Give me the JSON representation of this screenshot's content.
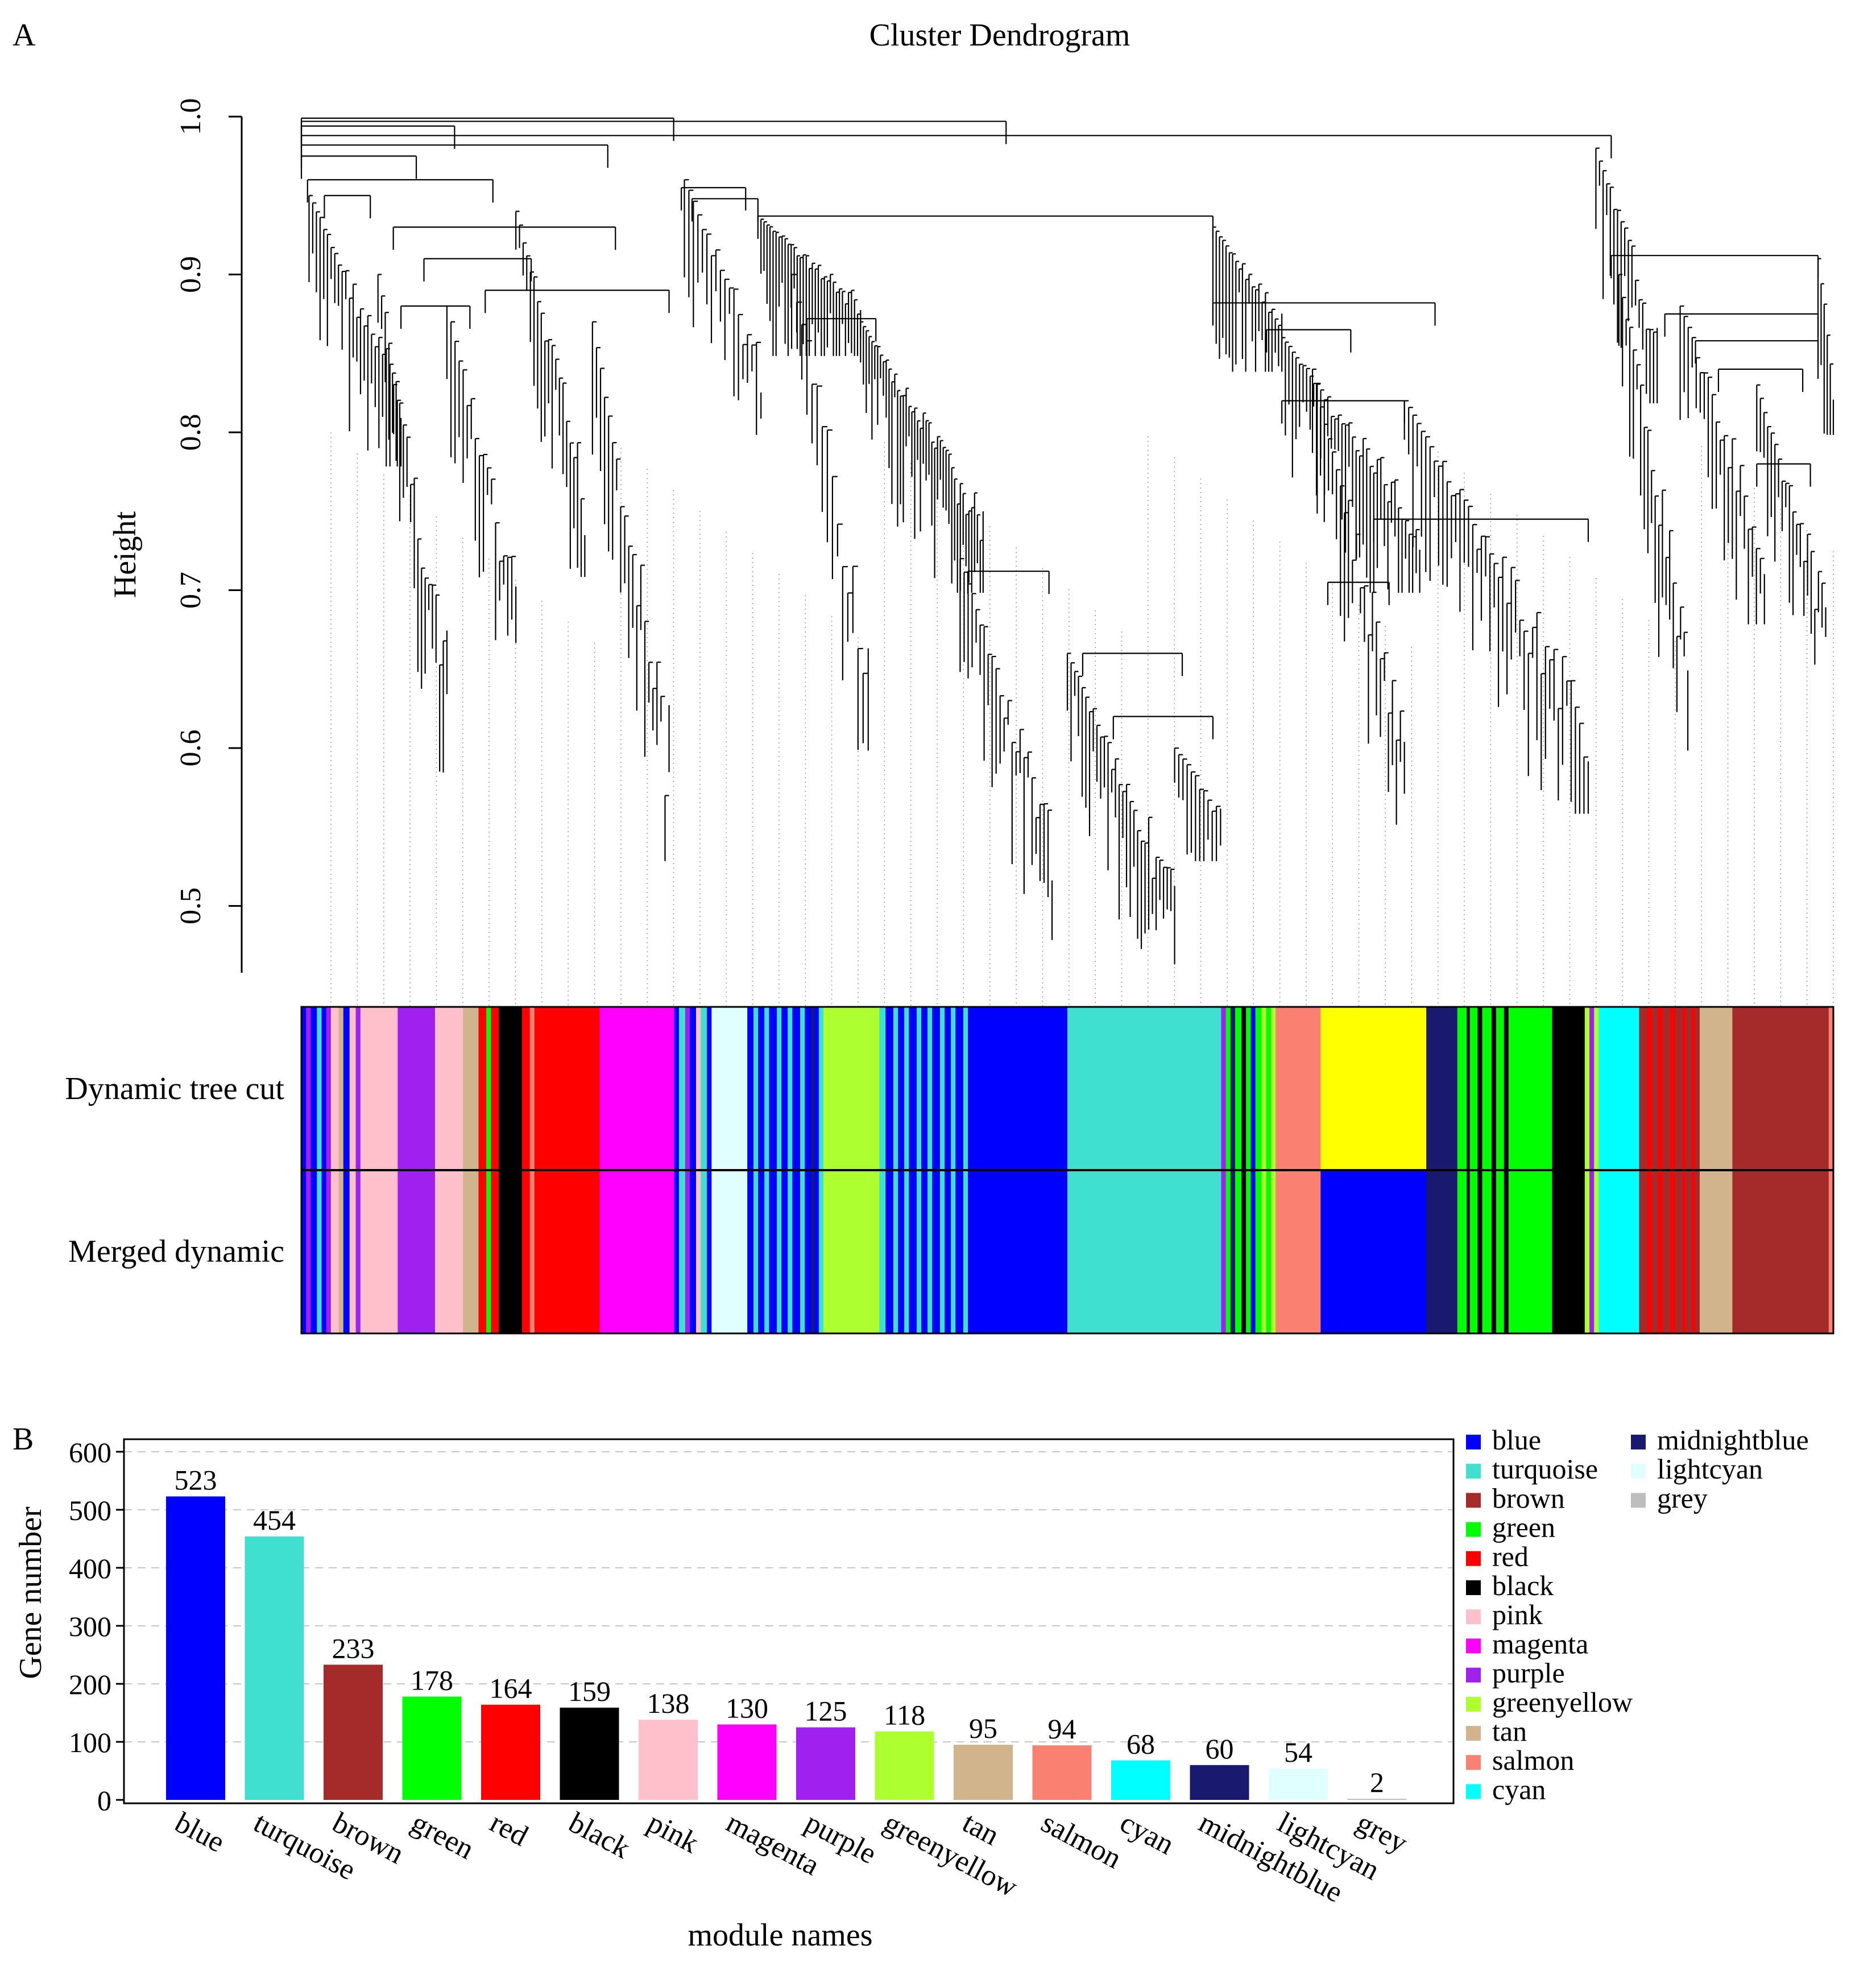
{
  "panel_a": {
    "label": "A",
    "title": "Cluster Dendrogram",
    "ylabel": "Height",
    "ylim": [
      0.44,
      1.0
    ],
    "yticks": [
      "0.5",
      "0.6",
      "0.7",
      "0.8",
      "0.9",
      "1.0"
    ],
    "ytick_values": [
      0.5,
      0.6,
      0.7,
      0.8,
      0.9,
      1.0
    ],
    "row_labels": [
      "Dynamic tree cut",
      "Merged dynamic"
    ],
    "colors": {
      "blue": "#0000ff",
      "turquoise": "#40e0d0",
      "brown": "#a52a2a",
      "green": "#00ff00",
      "red": "#ff0000",
      "black": "#000000",
      "pink": "#ffc0cb",
      "magenta": "#ff00ff",
      "purple": "#a020f0",
      "greenyellow": "#adff2f",
      "tan": "#d2b48c",
      "salmon": "#fa8072",
      "cyan": "#00ffff",
      "midnightblue": "#191970",
      "lightcyan": "#e0ffff",
      "grey": "#bebebe",
      "yellow": "#ffff00"
    },
    "dynamic_segments": [
      [
        "blue",
        0.3
      ],
      [
        "purple",
        0.3
      ],
      [
        "blue",
        0.4
      ],
      [
        "turquoise",
        0.3
      ],
      [
        "blue",
        0.3
      ],
      [
        "purple",
        0.3
      ],
      [
        "pink",
        0.5
      ],
      [
        "tan",
        0.3
      ],
      [
        "blue",
        0.4
      ],
      [
        "pink",
        0.4
      ],
      [
        "purple",
        0.3
      ],
      [
        "pink",
        0.3
      ],
      [
        "pink",
        2.1
      ],
      [
        "purple",
        2.4
      ],
      [
        "pink",
        1.8
      ],
      [
        "tan",
        1.0
      ],
      [
        "red",
        0.5
      ],
      [
        "green",
        0.3
      ],
      [
        "red",
        0.5
      ],
      [
        "black",
        1.5
      ],
      [
        "red",
        0.5
      ],
      [
        "salmon",
        0.3
      ],
      [
        "red",
        4.2
      ],
      [
        "magenta",
        4.8
      ],
      [
        "blue",
        0.3
      ],
      [
        "turquoise",
        0.4
      ],
      [
        "purple",
        0.3
      ],
      [
        "blue",
        0.4
      ],
      [
        "pink",
        0.3
      ],
      [
        "turquoise",
        0.4
      ],
      [
        "blue",
        0.3
      ],
      [
        "lightcyan",
        2.3
      ],
      [
        "blue",
        0.4
      ],
      [
        "turquoise",
        0.3
      ],
      [
        "blue",
        0.4
      ],
      [
        "turquoise",
        0.3
      ],
      [
        "blue",
        0.5
      ],
      [
        "turquoise",
        0.3
      ],
      [
        "blue",
        0.4
      ],
      [
        "turquoise",
        0.3
      ],
      [
        "blue",
        0.5
      ],
      [
        "turquoise",
        0.3
      ],
      [
        "blue",
        0.4
      ],
      [
        "midnightblue",
        0.2
      ],
      [
        "blue",
        0.3
      ],
      [
        "turquoise",
        0.3
      ],
      [
        "greenyellow",
        3.6
      ],
      [
        "turquoise",
        0.4
      ],
      [
        "blue",
        0.5
      ],
      [
        "turquoise",
        0.3
      ],
      [
        "blue",
        0.4
      ],
      [
        "turquoise",
        0.3
      ],
      [
        "blue",
        0.5
      ],
      [
        "turquoise",
        0.3
      ],
      [
        "blue",
        0.4
      ],
      [
        "turquoise",
        0.3
      ],
      [
        "blue",
        0.5
      ],
      [
        "turquoise",
        0.3
      ],
      [
        "blue",
        0.4
      ],
      [
        "turquoise",
        0.3
      ],
      [
        "blue",
        0.5
      ],
      [
        "turquoise",
        0.3
      ],
      [
        "blue",
        0.4
      ],
      [
        "blue",
        6.0
      ],
      [
        "turquoise",
        9.9
      ],
      [
        "purple",
        0.3
      ],
      [
        "green",
        0.3
      ],
      [
        "midnightblue",
        0.3
      ],
      [
        "green",
        0.4
      ],
      [
        "black",
        0.3
      ],
      [
        "green",
        0.3
      ],
      [
        "blue",
        0.3
      ],
      [
        "green",
        0.4
      ],
      [
        "greenyellow",
        0.3
      ],
      [
        "green",
        0.3
      ],
      [
        "greenyellow",
        0.3
      ],
      [
        "salmon",
        2.9
      ],
      [
        "yellow",
        6.8
      ],
      [
        "midnightblue",
        2.0
      ],
      [
        "green",
        0.6
      ],
      [
        "black",
        0.2
      ],
      [
        "green",
        0.5
      ],
      [
        "black",
        0.3
      ],
      [
        "green",
        0.6
      ],
      [
        "black",
        0.3
      ],
      [
        "green",
        0.5
      ],
      [
        "black",
        0.3
      ],
      [
        "green",
        0.6
      ],
      [
        "green",
        2.2
      ],
      [
        "black",
        2.1
      ],
      [
        "greenyellow",
        0.3
      ],
      [
        "purple",
        0.3
      ],
      [
        "greenyellow",
        0.3
      ],
      [
        "cyan",
        2.6
      ],
      [
        "brown",
        0.5
      ],
      [
        "red",
        0.3
      ],
      [
        "brown",
        0.4
      ],
      [
        "red",
        0.3
      ],
      [
        "brown",
        0.5
      ],
      [
        "red",
        0.3
      ],
      [
        "brown",
        0.5
      ],
      [
        "red",
        0.2
      ],
      [
        "brown",
        0.4
      ],
      [
        "red",
        0.2
      ],
      [
        "brown",
        0.3
      ],
      [
        "tan",
        2.1
      ],
      [
        "brown",
        6.2
      ],
      [
        "salmon",
        0.3
      ]
    ],
    "merged_segments": [
      [
        "blue",
        0.3
      ],
      [
        "purple",
        0.3
      ],
      [
        "blue",
        0.4
      ],
      [
        "turquoise",
        0.3
      ],
      [
        "blue",
        0.3
      ],
      [
        "purple",
        0.3
      ],
      [
        "pink",
        0.5
      ],
      [
        "tan",
        0.3
      ],
      [
        "blue",
        0.4
      ],
      [
        "pink",
        0.4
      ],
      [
        "purple",
        0.3
      ],
      [
        "pink",
        0.3
      ],
      [
        "pink",
        2.1
      ],
      [
        "purple",
        2.4
      ],
      [
        "pink",
        1.8
      ],
      [
        "tan",
        1.0
      ],
      [
        "red",
        0.5
      ],
      [
        "green",
        0.3
      ],
      [
        "red",
        0.5
      ],
      [
        "black",
        1.5
      ],
      [
        "red",
        0.5
      ],
      [
        "salmon",
        0.3
      ],
      [
        "red",
        4.2
      ],
      [
        "magenta",
        4.8
      ],
      [
        "blue",
        0.3
      ],
      [
        "turquoise",
        0.4
      ],
      [
        "purple",
        0.3
      ],
      [
        "blue",
        0.4
      ],
      [
        "pink",
        0.3
      ],
      [
        "turquoise",
        0.4
      ],
      [
        "blue",
        0.3
      ],
      [
        "lightcyan",
        2.3
      ],
      [
        "blue",
        0.4
      ],
      [
        "turquoise",
        0.3
      ],
      [
        "blue",
        0.4
      ],
      [
        "turquoise",
        0.3
      ],
      [
        "blue",
        0.5
      ],
      [
        "turquoise",
        0.3
      ],
      [
        "blue",
        0.4
      ],
      [
        "turquoise",
        0.3
      ],
      [
        "blue",
        0.5
      ],
      [
        "turquoise",
        0.3
      ],
      [
        "blue",
        0.4
      ],
      [
        "midnightblue",
        0.2
      ],
      [
        "blue",
        0.3
      ],
      [
        "turquoise",
        0.3
      ],
      [
        "greenyellow",
        3.6
      ],
      [
        "turquoise",
        0.4
      ],
      [
        "blue",
        0.5
      ],
      [
        "turquoise",
        0.3
      ],
      [
        "blue",
        0.4
      ],
      [
        "turquoise",
        0.3
      ],
      [
        "blue",
        0.5
      ],
      [
        "turquoise",
        0.3
      ],
      [
        "blue",
        0.4
      ],
      [
        "turquoise",
        0.3
      ],
      [
        "blue",
        0.5
      ],
      [
        "turquoise",
        0.3
      ],
      [
        "blue",
        0.4
      ],
      [
        "turquoise",
        0.3
      ],
      [
        "blue",
        0.5
      ],
      [
        "turquoise",
        0.3
      ],
      [
        "blue",
        0.4
      ],
      [
        "blue",
        6.0
      ],
      [
        "turquoise",
        9.9
      ],
      [
        "purple",
        0.3
      ],
      [
        "green",
        0.3
      ],
      [
        "midnightblue",
        0.3
      ],
      [
        "green",
        0.4
      ],
      [
        "black",
        0.3
      ],
      [
        "green",
        0.3
      ],
      [
        "blue",
        0.3
      ],
      [
        "green",
        0.4
      ],
      [
        "greenyellow",
        0.3
      ],
      [
        "green",
        0.3
      ],
      [
        "greenyellow",
        0.3
      ],
      [
        "salmon",
        2.9
      ],
      [
        "blue",
        6.8
      ],
      [
        "midnightblue",
        2.0
      ],
      [
        "green",
        0.6
      ],
      [
        "black",
        0.2
      ],
      [
        "green",
        0.5
      ],
      [
        "black",
        0.3
      ],
      [
        "green",
        0.6
      ],
      [
        "black",
        0.3
      ],
      [
        "green",
        0.5
      ],
      [
        "black",
        0.3
      ],
      [
        "green",
        0.6
      ],
      [
        "green",
        2.2
      ],
      [
        "black",
        2.1
      ],
      [
        "greenyellow",
        0.3
      ],
      [
        "purple",
        0.3
      ],
      [
        "greenyellow",
        0.3
      ],
      [
        "cyan",
        2.6
      ],
      [
        "brown",
        0.5
      ],
      [
        "red",
        0.3
      ],
      [
        "brown",
        0.4
      ],
      [
        "red",
        0.3
      ],
      [
        "brown",
        0.5
      ],
      [
        "red",
        0.3
      ],
      [
        "brown",
        0.5
      ],
      [
        "red",
        0.2
      ],
      [
        "brown",
        0.4
      ],
      [
        "red",
        0.2
      ],
      [
        "brown",
        0.3
      ],
      [
        "tan",
        2.1
      ],
      [
        "brown",
        6.2
      ],
      [
        "salmon",
        0.3
      ]
    ],
    "tree": {
      "merges": [
        {
          "x": [
            0.0,
            24.3
          ],
          "h": 0.999
        },
        {
          "x": [
            0.0,
            46.0
          ],
          "h": 0.997
        },
        {
          "x": [
            0.0,
            10.0
          ],
          "h": 0.994
        },
        {
          "x": [
            0.0,
            85.5
          ],
          "h": 0.988
        },
        {
          "x": [
            0.0,
            20.0
          ],
          "h": 0.982
        },
        {
          "x": [
            0.0,
            7.5
          ],
          "h": 0.975
        },
        {
          "x": [
            0.4,
            12.5
          ],
          "h": 0.96
        },
        {
          "x": [
            1.5,
            4.5
          ],
          "h": 0.95
        },
        {
          "x": [
            6.0,
            20.5
          ],
          "h": 0.93
        },
        {
          "x": [
            8.0,
            15.0
          ],
          "h": 0.91
        },
        {
          "x": [
            12.0,
            24.0
          ],
          "h": 0.89
        },
        {
          "x": [
            6.5,
            11.0
          ],
          "h": 0.88
        },
        {
          "x": [
            24.8,
            29.0
          ],
          "h": 0.955
        },
        {
          "x": [
            25.5,
            29.8
          ],
          "h": 0.948
        },
        {
          "x": [
            29.8,
            59.5
          ],
          "h": 0.937
        },
        {
          "x": [
            33.0,
            37.5
          ],
          "h": 0.872
        },
        {
          "x": [
            43.5,
            48.8
          ],
          "h": 0.712
        },
        {
          "x": [
            51.0,
            57.5
          ],
          "h": 0.66
        },
        {
          "x": [
            53.0,
            59.5
          ],
          "h": 0.62
        },
        {
          "x": [
            59.5,
            74.0
          ],
          "h": 0.882
        },
        {
          "x": [
            63.0,
            68.5
          ],
          "h": 0.865
        },
        {
          "x": [
            64.0,
            72.0
          ],
          "h": 0.82
        },
        {
          "x": [
            70.0,
            84.0
          ],
          "h": 0.745
        },
        {
          "x": [
            67.0,
            71.0
          ],
          "h": 0.705
        },
        {
          "x": [
            85.5,
            99.0
          ],
          "h": 0.912
        },
        {
          "x": [
            89.0,
            99.0
          ],
          "h": 0.875
        },
        {
          "x": [
            91.0,
            99.0
          ],
          "h": 0.858
        },
        {
          "x": [
            92.5,
            98.0
          ],
          "h": 0.84
        },
        {
          "x": [
            95.0,
            98.5
          ],
          "h": 0.78
        }
      ],
      "leaves": [
        {
          "x": [
            0.5,
            6.5
          ],
          "base": 0.95,
          "tip": 0.8,
          "k": 26
        },
        {
          "x": [
            5.0,
            9.5
          ],
          "base": 0.9,
          "tip": 0.6,
          "k": 20
        },
        {
          "x": [
            9.5,
            14.0
          ],
          "base": 0.88,
          "tip": 0.66,
          "k": 18
        },
        {
          "x": [
            14.0,
            18.5
          ],
          "base": 0.94,
          "tip": 0.73,
          "k": 20
        },
        {
          "x": [
            19.0,
            24.0
          ],
          "base": 0.87,
          "tip": 0.55,
          "k": 20
        },
        {
          "x": [
            25.0,
            30.0
          ],
          "base": 0.96,
          "tip": 0.82,
          "k": 18
        },
        {
          "x": [
            30.0,
            36.5
          ],
          "base": 0.935,
          "tip": 0.87,
          "k": 34
        },
        {
          "x": [
            36.5,
            44.5
          ],
          "base": 0.87,
          "tip": 0.72,
          "k": 44
        },
        {
          "x": [
            32.0,
            37.0
          ],
          "base": 0.9,
          "tip": 0.62,
          "k": 16
        },
        {
          "x": [
            43.0,
            49.0
          ],
          "base": 0.72,
          "tip": 0.5,
          "k": 24
        },
        {
          "x": [
            50.0,
            57.0
          ],
          "base": 0.66,
          "tip": 0.48,
          "k": 30
        },
        {
          "x": [
            57.0,
            60.0
          ],
          "base": 0.6,
          "tip": 0.55,
          "k": 12
        },
        {
          "x": [
            59.5,
            64.0
          ],
          "base": 0.93,
          "tip": 0.86,
          "k": 22
        },
        {
          "x": [
            64.0,
            73.0
          ],
          "base": 0.86,
          "tip": 0.72,
          "k": 40
        },
        {
          "x": [
            66.0,
            72.0
          ],
          "base": 0.84,
          "tip": 0.56,
          "k": 24
        },
        {
          "x": [
            72.0,
            84.0
          ],
          "base": 0.82,
          "tip": 0.58,
          "k": 44
        },
        {
          "x": [
            84.5,
            88.5
          ],
          "base": 0.98,
          "tip": 0.84,
          "k": 18
        },
        {
          "x": [
            86.0,
            90.5
          ],
          "base": 0.9,
          "tip": 0.62,
          "k": 20
        },
        {
          "x": [
            90.0,
            95.5
          ],
          "base": 0.88,
          "tip": 0.7,
          "k": 22
        },
        {
          "x": [
            95.0,
            99.5
          ],
          "base": 0.83,
          "tip": 0.66,
          "k": 20
        },
        {
          "x": [
            99.0,
            100.0
          ],
          "base": 0.91,
          "tip": 0.82,
          "k": 6
        }
      ]
    }
  },
  "panel_b": {
    "label": "B",
    "xlabel": "module names",
    "ylabel": "Gene number",
    "legend_title": "",
    "legend_columns": [
      [
        "blue",
        "turquoise",
        "brown",
        "green",
        "red",
        "black",
        "pink",
        "magenta",
        "purple",
        "greenyellow",
        "tan",
        "salmon",
        "cyan"
      ],
      [
        "midnightblue",
        "lightcyan",
        "grey"
      ]
    ],
    "chart_data": {
      "type": "bar",
      "title": "",
      "xlabel": "module names",
      "ylabel": "Gene number",
      "ylim": [
        0,
        620
      ],
      "yticks": [
        0,
        100,
        200,
        300,
        400,
        500,
        600
      ],
      "categories": [
        "blue",
        "turquoise",
        "brown",
        "green",
        "red",
        "black",
        "pink",
        "magenta",
        "purple",
        "greenyellow",
        "tan",
        "salmon",
        "cyan",
        "midnightblue",
        "lightcyan",
        "grey"
      ],
      "values": [
        523,
        454,
        233,
        178,
        164,
        159,
        138,
        130,
        125,
        118,
        95,
        94,
        68,
        60,
        54,
        2
      ],
      "value_labels": [
        "523",
        "454",
        "233",
        "178",
        "164",
        "159",
        "138",
        "130",
        "125",
        "118",
        "95",
        "94",
        "68",
        "60",
        "54",
        "2"
      ],
      "bar_colors": [
        "#0000ff",
        "#40e0d0",
        "#a52a2a",
        "#00ff00",
        "#ff0000",
        "#000000",
        "#ffc0cb",
        "#ff00ff",
        "#a020f0",
        "#adff2f",
        "#d2b48c",
        "#fa8072",
        "#00ffff",
        "#191970",
        "#e0ffff",
        "#bebebe"
      ],
      "grid": true,
      "legend_position": "right"
    }
  }
}
